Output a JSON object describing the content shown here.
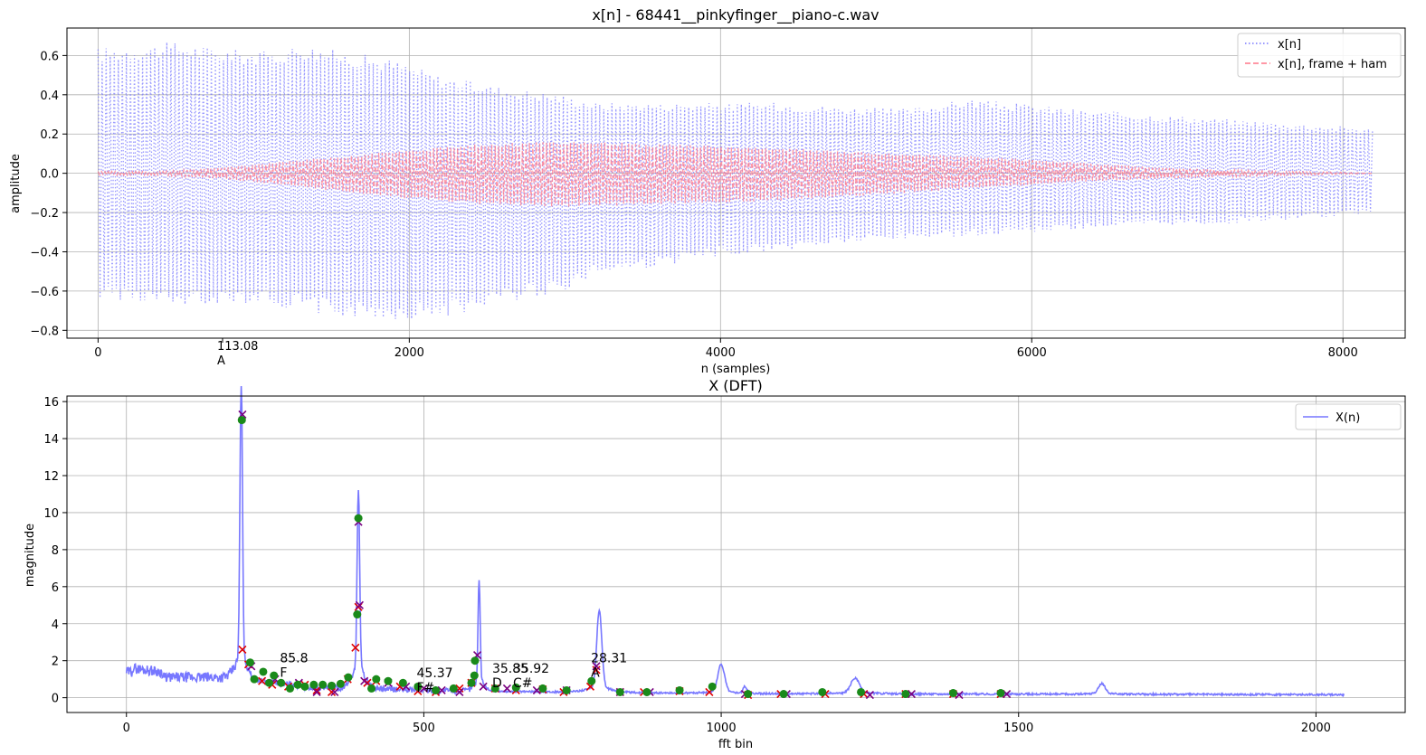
{
  "chart_data": [
    {
      "type": "line",
      "title": "x[n] - 68441__pinkyfinger__piano-c.wav",
      "xlabel": "n (samples)",
      "ylabel": "amplitude",
      "xlim": [
        -200,
        8400
      ],
      "ylim": [
        -0.84,
        0.74
      ],
      "x_ticks": [
        0,
        2000,
        4000,
        6000,
        8000
      ],
      "x_tick_labels": [
        "0",
        "2000",
        "4000",
        "6000",
        "8000"
      ],
      "y_ticks": [
        -0.8,
        -0.6,
        -0.4,
        -0.2,
        0.0,
        0.2,
        0.4,
        0.6
      ],
      "y_tick_labels": [
        "−0.8",
        "−0.6",
        "−0.4",
        "−0.2",
        "0.0",
        "0.2",
        "0.4",
        "0.6"
      ],
      "extra_tick": {
        "x": 800,
        "line1": "113.08",
        "line2": "A"
      },
      "grid": true,
      "legend_position": "top-right",
      "n_samples": 8192,
      "series": [
        {
          "name": "x[n]",
          "color": "#7777ff",
          "style": "dotted",
          "envelope": {
            "x": [
              0,
              300,
              500,
              800,
              1100,
              1300,
              1600,
              1900,
              2200,
              2600,
              3000,
              3200,
              3600,
              4000,
              4400,
              4800,
              5200,
              5600,
              6000,
              6400,
              6800,
              7200,
              7600,
              8000,
              8192
            ],
            "upper": [
              0.64,
              0.66,
              0.67,
              0.64,
              0.62,
              0.66,
              0.62,
              0.58,
              0.5,
              0.44,
              0.4,
              0.36,
              0.36,
              0.36,
              0.36,
              0.34,
              0.33,
              0.38,
              0.35,
              0.32,
              0.3,
              0.28,
              0.26,
              0.24,
              0.23
            ],
            "lower": [
              -0.64,
              -0.66,
              -0.69,
              -0.66,
              -0.67,
              -0.7,
              -0.74,
              -0.75,
              -0.74,
              -0.66,
              -0.6,
              -0.52,
              -0.48,
              -0.42,
              -0.4,
              -0.36,
              -0.34,
              -0.32,
              -0.3,
              -0.28,
              -0.27,
              -0.26,
              -0.24,
              -0.22,
              -0.2
            ]
          }
        },
        {
          "name": "x[n], frame + ham",
          "color": "#ff7788",
          "style": "dashed",
          "envelope": {
            "x": [
              0,
              400,
              800,
              1200,
              1600,
              2000,
              2400,
              2800,
              3200,
              3600,
              4000,
              4400,
              4800,
              5200,
              5600,
              6000,
              6400,
              6800,
              7200,
              7600,
              8000,
              8192
            ],
            "upper": [
              0.01,
              0.01,
              0.03,
              0.06,
              0.09,
              0.12,
              0.15,
              0.16,
              0.16,
              0.15,
              0.14,
              0.13,
              0.11,
              0.1,
              0.09,
              0.07,
              0.05,
              0.03,
              0.02,
              0.01,
              0.005,
              0.0
            ],
            "lower": [
              -0.01,
              -0.01,
              -0.03,
              -0.06,
              -0.1,
              -0.13,
              -0.16,
              -0.17,
              -0.17,
              -0.16,
              -0.15,
              -0.14,
              -0.12,
              -0.1,
              -0.08,
              -0.06,
              -0.04,
              -0.03,
              -0.02,
              -0.01,
              -0.005,
              0.0
            ]
          }
        }
      ]
    },
    {
      "type": "line",
      "title": "X (DFT)",
      "xlabel": "fft bin",
      "ylabel": "magnitude",
      "xlim": [
        -100,
        2150
      ],
      "ylim": [
        -0.8,
        16.3
      ],
      "x_ticks": [
        0,
        500,
        1000,
        1500,
        2000
      ],
      "x_tick_labels": [
        "0",
        "500",
        "1000",
        "1500",
        "2000"
      ],
      "y_ticks": [
        0,
        2,
        4,
        6,
        8,
        10,
        12,
        14,
        16
      ],
      "y_tick_labels": [
        "0",
        "2",
        "4",
        "6",
        "8",
        "10",
        "12",
        "14",
        "16"
      ],
      "grid": true,
      "legend_position": "top-right",
      "series": [
        {
          "name": "X(n)",
          "color": "#7777ff",
          "style": "solid"
        }
      ],
      "peaks": [
        {
          "x": 193,
          "y": 15.0,
          "width": 3,
          "base": 4.0
        },
        {
          "x": 390,
          "y": 9.7,
          "width": 3,
          "base": 4.6
        },
        {
          "x": 593,
          "y": 5.6,
          "width": 2.5,
          "base": 2.2
        },
        {
          "x": 795,
          "y": 4.2,
          "width": 6,
          "base": 1.0
        },
        {
          "x": 1000,
          "y": 1.5,
          "width": 8,
          "base": 0.3
        },
        {
          "x": 1040,
          "y": 0.35,
          "width": 4,
          "base": 0.1
        },
        {
          "x": 1225,
          "y": 0.8,
          "width": 10,
          "base": 0.2
        },
        {
          "x": 1640,
          "y": 0.55,
          "width": 8,
          "base": 0.1
        }
      ],
      "red_markers": [
        [
          195,
          2.6
        ],
        [
          205,
          1.8
        ],
        [
          228,
          0.9
        ],
        [
          245,
          0.7
        ],
        [
          272,
          0.6
        ],
        [
          300,
          0.7
        ],
        [
          320,
          0.4
        ],
        [
          345,
          0.3
        ],
        [
          372,
          1.0
        ],
        [
          385,
          2.7
        ],
        [
          390,
          4.9
        ],
        [
          405,
          0.8
        ],
        [
          420,
          0.9
        ],
        [
          460,
          0.6
        ],
        [
          490,
          0.35
        ],
        [
          520,
          0.3
        ],
        [
          560,
          0.5
        ],
        [
          580,
          0.8
        ],
        [
          620,
          0.5
        ],
        [
          655,
          0.4
        ],
        [
          700,
          0.45
        ],
        [
          735,
          0.3
        ],
        [
          780,
          0.6
        ],
        [
          790,
          1.5
        ],
        [
          830,
          0.3
        ],
        [
          870,
          0.3
        ],
        [
          930,
          0.35
        ],
        [
          980,
          0.3
        ],
        [
          1045,
          0.15
        ],
        [
          1100,
          0.2
        ],
        [
          1175,
          0.2
        ],
        [
          1240,
          0.2
        ],
        [
          1310,
          0.2
        ],
        [
          1390,
          0.2
        ],
        [
          1470,
          0.2
        ]
      ],
      "purple_markers": [
        [
          195,
          15.3
        ],
        [
          390,
          9.5
        ],
        [
          392,
          5.0
        ],
        [
          590,
          2.3
        ],
        [
          790,
          1.7
        ],
        [
          210,
          1.7
        ],
        [
          250,
          1.0
        ],
        [
          290,
          0.8
        ],
        [
          320,
          0.3
        ],
        [
          350,
          0.3
        ],
        [
          400,
          0.9
        ],
        [
          440,
          0.8
        ],
        [
          470,
          0.6
        ],
        [
          500,
          0.5
        ],
        [
          530,
          0.4
        ],
        [
          560,
          0.3
        ],
        [
          600,
          0.6
        ],
        [
          640,
          0.5
        ],
        [
          690,
          0.4
        ],
        [
          740,
          0.4
        ],
        [
          830,
          0.3
        ],
        [
          880,
          0.3
        ],
        [
          1040,
          0.2
        ],
        [
          1110,
          0.2
        ],
        [
          1250,
          0.15
        ],
        [
          1320,
          0.2
        ],
        [
          1400,
          0.15
        ],
        [
          1480,
          0.2
        ]
      ],
      "green_markers": [
        [
          194,
          15.0
        ],
        [
          390,
          9.7
        ],
        [
          388,
          4.5
        ],
        [
          586,
          2.0
        ],
        [
          585,
          1.2
        ],
        [
          782,
          0.9
        ],
        [
          208,
          1.9
        ],
        [
          215,
          1.0
        ],
        [
          230,
          1.4
        ],
        [
          240,
          0.8
        ],
        [
          248,
          1.2
        ],
        [
          260,
          0.8
        ],
        [
          275,
          0.5
        ],
        [
          288,
          0.7
        ],
        [
          300,
          0.6
        ],
        [
          315,
          0.7
        ],
        [
          330,
          0.7
        ],
        [
          345,
          0.65
        ],
        [
          360,
          0.75
        ],
        [
          373,
          1.1
        ],
        [
          412,
          0.5
        ],
        [
          420,
          1.0
        ],
        [
          440,
          0.9
        ],
        [
          465,
          0.8
        ],
        [
          490,
          0.6
        ],
        [
          520,
          0.4
        ],
        [
          550,
          0.5
        ],
        [
          580,
          0.8
        ],
        [
          620,
          0.5
        ],
        [
          655,
          0.55
        ],
        [
          700,
          0.5
        ],
        [
          740,
          0.4
        ],
        [
          830,
          0.3
        ],
        [
          875,
          0.3
        ],
        [
          930,
          0.4
        ],
        [
          985,
          0.6
        ],
        [
          1045,
          0.2
        ],
        [
          1105,
          0.2
        ],
        [
          1170,
          0.3
        ],
        [
          1235,
          0.3
        ],
        [
          1310,
          0.2
        ],
        [
          1390,
          0.25
        ],
        [
          1470,
          0.25
        ]
      ],
      "annotations": [
        {
          "x": 258,
          "y": 1.9,
          "line1": "85.8",
          "line2": "F"
        },
        {
          "x": 488,
          "y": 1.1,
          "line1": "45.37",
          "line2": "F#"
        },
        {
          "x": 615,
          "y": 1.35,
          "line1": "35.85",
          "line2": "D"
        },
        {
          "x": 650,
          "y": 1.35,
          "line1": "35.92",
          "line2": "C#"
        },
        {
          "x": 781,
          "y": 1.9,
          "line1": "28.31",
          "line2": "A"
        }
      ]
    }
  ]
}
